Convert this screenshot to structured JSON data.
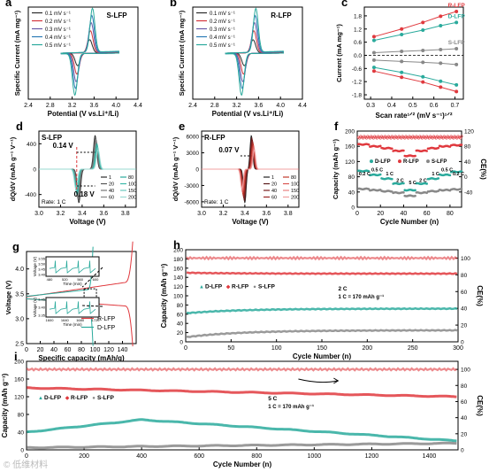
{
  "chart_data": [
    {
      "id": "a",
      "type": "line",
      "panel_label": "a",
      "title": "S-LFP",
      "xlabel": "Potential (V vs.Li⁺/Li)",
      "ylabel": "Specific Current (mA mg⁻¹)",
      "xlim": [
        2.4,
        4.4
      ],
      "ylim": [
        -1,
        1
      ],
      "xticks": [
        "2.4",
        "2.8",
        "3.2",
        "3.6",
        "4.0",
        "4.4"
      ],
      "legend": [
        "0.1 mV s⁻¹",
        "0.2 mV s⁻¹",
        "0.3 mV s⁻¹",
        "0.4 mV s⁻¹",
        "0.5 mV s⁻¹"
      ],
      "colors": [
        "#2b2b2b",
        "#d4343c",
        "#6a5aa8",
        "#2c7bb6",
        "#2aaa9c"
      ],
      "scales": [
        0.3,
        0.5,
        0.68,
        0.84,
        1.0
      ],
      "ox_peak": 3.52,
      "red_peak": 3.3,
      "legend_position": "top-left"
    },
    {
      "id": "b",
      "type": "line",
      "panel_label": "b",
      "title": "R-LFP",
      "xlabel": "Potential (V vs.Li⁺/Li)",
      "ylabel": "Specific Current (mA mg⁻¹)",
      "xlim": [
        2.4,
        4.4
      ],
      "ylim": [
        -1,
        1
      ],
      "xticks": [
        "2.4",
        "2.8",
        "3.2",
        "3.6",
        "4.0",
        "4.4"
      ],
      "legend": [
        "0.1 mV s⁻¹",
        "0.2 mV s⁻¹",
        "0.3 mV s⁻¹",
        "0.4 mV s⁻¹",
        "0.5 mV s⁻¹"
      ],
      "colors": [
        "#2b2b2b",
        "#d4343c",
        "#6a5aa8",
        "#2c7bb6",
        "#2aaa9c"
      ],
      "scales": [
        0.3,
        0.5,
        0.68,
        0.84,
        1.0
      ],
      "ox_peak": 3.5,
      "red_peak": 3.34,
      "legend_position": "top-left"
    },
    {
      "id": "c",
      "type": "scatter",
      "panel_label": "c",
      "xlabel": "Scan rate¹ᐟ² (mV s⁻¹)¹ᐟ²",
      "ylabel": "Current (mA mg⁻¹)",
      "xlim": [
        0.27,
        0.74
      ],
      "ylim": [
        -2.0,
        2.2
      ],
      "xticks": [
        "0.3",
        "0.4",
        "0.5",
        "0.6",
        "0.7"
      ],
      "yticks": [
        "-1.8",
        "-1.2",
        "-0.6",
        "0.0",
        "0.6",
        "1.2",
        "1.8"
      ],
      "x": [
        0.316,
        0.447,
        0.548,
        0.632,
        0.707
      ],
      "series": [
        {
          "name": "R-LFP",
          "color": "#e0393e",
          "values": [
            0.85,
            1.2,
            1.5,
            1.78,
            2.0
          ]
        },
        {
          "name": "D-LFP",
          "color": "#2aaa9c",
          "values": [
            0.68,
            0.95,
            1.15,
            1.35,
            1.5
          ]
        },
        {
          "name": "S-LFP",
          "color": "#888888",
          "values": [
            0.12,
            0.18,
            0.22,
            0.26,
            0.3
          ]
        },
        {
          "name": "",
          "color": "#888888",
          "values": [
            -0.22,
            -0.28,
            -0.32,
            -0.36,
            -0.42
          ]
        },
        {
          "name": "",
          "color": "#2aaa9c",
          "values": [
            -0.55,
            -0.78,
            -0.98,
            -1.18,
            -1.35
          ]
        },
        {
          "name": "",
          "color": "#e0393e",
          "values": [
            -0.72,
            -1.0,
            -1.22,
            -1.45,
            -1.65
          ]
        }
      ]
    },
    {
      "id": "d",
      "type": "line",
      "panel_label": "d",
      "title": "S-LFP",
      "xlabel": "Voltage (V)",
      "ylabel": "dQ/dV (mAh g⁻¹ V⁻¹)",
      "xlim": [
        3.0,
        3.9
      ],
      "ylim": [
        -600,
        600
      ],
      "xticks": [
        "3.0",
        "3.2",
        "3.4",
        "3.6",
        "3.8"
      ],
      "yticks": [
        "-400",
        "0",
        "400"
      ],
      "annotations": [
        "0.14 V",
        "0.18 V"
      ],
      "note": "Rate: 1 C",
      "legend": [
        "1",
        "20",
        "40",
        "60",
        "80",
        "100",
        "150",
        "200"
      ],
      "colors": [
        "#2b2b2b",
        "#555",
        "#777",
        "#888",
        "#2aaa9c",
        "#3bb8aa",
        "#6ac9bf",
        "#9ad9d2"
      ],
      "ox_peak": 3.52,
      "red_peak": 3.37
    },
    {
      "id": "e",
      "type": "line",
      "panel_label": "e",
      "title": "R-LFP",
      "xlabel": "Voltage (V)",
      "ylabel": "dQ/dV (mAh g⁻¹ V⁻¹)",
      "xlim": [
        3.0,
        3.9
      ],
      "ylim": [
        -7000,
        7000
      ],
      "xticks": [
        "3.0",
        "3.2",
        "3.4",
        "3.6",
        "3.8"
      ],
      "yticks": [
        "-6000",
        "-3000",
        "0",
        "3000",
        "6000"
      ],
      "annotations": [
        "0.07 V"
      ],
      "note": "Rate: 1 C",
      "legend": [
        "1",
        "20",
        "40",
        "60",
        "80",
        "100",
        "150",
        "200"
      ],
      "colors": [
        "#222",
        "#5a1a1a",
        "#7a2020",
        "#9a2525",
        "#c0392b",
        "#d9534f",
        "#e88080",
        "#f0a0a0"
      ],
      "ox_peak": 3.46,
      "red_peak": 3.4
    },
    {
      "id": "f",
      "type": "scatter",
      "panel_label": "f",
      "xlabel": "Cycle Number (n)",
      "ylabel": "Capacity (mAh g⁻¹)",
      "y2label": "CE(%)",
      "xlim": [
        0,
        90
      ],
      "ylim": [
        0,
        200
      ],
      "xticks": [
        "0",
        "20",
        "40",
        "60",
        "80"
      ],
      "yticks": [
        "0",
        "40",
        "80",
        "120",
        "160",
        "200"
      ],
      "y2ticks": [
        "-40",
        "0",
        "40",
        "80",
        "120"
      ],
      "legend": [
        "D-LFP",
        "R-LFP",
        "S-LFP"
      ],
      "rate_labels": [
        "0.2 C",
        "0.5 C",
        "1 C",
        "2 C",
        "5 C",
        "2 C",
        "1 C",
        "0.5 C",
        "0.2 C"
      ],
      "colors": {
        "D": "#2aaa9c",
        "R": "#e0393e",
        "S": "#888888"
      },
      "steps": {
        "R": [
          165,
          160,
          155,
          148,
          135,
          148,
          155,
          160,
          163
        ],
        "D": [
          95,
          85,
          75,
          62,
          45,
          62,
          75,
          85,
          93
        ],
        "S": [
          48,
          45,
          42,
          38,
          30,
          38,
          42,
          45,
          47
        ]
      }
    },
    {
      "id": "g",
      "type": "line",
      "panel_label": "g",
      "xlabel": "Specific capacity (mAh/g)",
      "ylabel": "Voltage (V)",
      "xlim": [
        0,
        160
      ],
      "ylim": [
        2.5,
        4.35
      ],
      "xticks": [
        "0",
        "20",
        "40",
        "60",
        "80",
        "100",
        "120",
        "140"
      ],
      "yticks": [
        "2.5",
        "3.0",
        "3.5",
        "4.0"
      ],
      "legend": [
        "R-LFP",
        "D-LFP"
      ],
      "colors": [
        "#e0393e",
        "#2aaa9c"
      ],
      "end_capacity": {
        "R-LFP": 155,
        "D-LFP": 97
      },
      "inset_top": {
        "ylabel": "Voltage (V)",
        "xlabel": "Time (min)",
        "xticks": [
          "480",
          "520",
          "560",
          "600"
        ],
        "yticks": [
          "3.40",
          "3.45",
          "3.50",
          "3.55"
        ]
      },
      "inset_bottom": {
        "ylabel": "Voltage (V)",
        "xlabel": "Time (min)",
        "xticks": [
          "1600",
          "1640",
          "1680",
          "1720"
        ],
        "yticks": [
          "3.35",
          "3.40",
          "3.45"
        ]
      }
    },
    {
      "id": "h",
      "type": "scatter",
      "panel_label": "h",
      "xlabel": "Cycle Number (n)",
      "ylabel": "Capacity (mAh g⁻¹)",
      "y2label": "CE(%)",
      "xlim": [
        0,
        300
      ],
      "ylim": [
        0,
        200
      ],
      "xticks": [
        "0",
        "50",
        "100",
        "150",
        "200",
        "250",
        "300"
      ],
      "yticks": [
        "0",
        "20",
        "40",
        "60",
        "80",
        "100",
        "120",
        "140",
        "160",
        "180",
        "200"
      ],
      "y2ticks": [
        "0",
        "20",
        "40",
        "60",
        "80",
        "100"
      ],
      "legend": [
        "D-LFP",
        "R-LFP",
        "S-LFP"
      ],
      "rate": "2 C",
      "note": "1 C = 170 mAh g⁻¹",
      "capacity": {
        "R": [
          150,
          148
        ],
        "D": [
          62,
          72
        ],
        "S": [
          10,
          25
        ]
      },
      "ce": 100,
      "colors": {
        "D": "#2aaa9c",
        "R": "#e0393e",
        "S": "#888888"
      }
    },
    {
      "id": "i",
      "type": "scatter",
      "panel_label": "i",
      "xlabel": "Cycle Number (n)",
      "ylabel": "Capacity (mAh g⁻¹)",
      "y2label": "CE(%)",
      "xlim": [
        0,
        1500
      ],
      "ylim": [
        0,
        200
      ],
      "xticks": [
        "0",
        "200",
        "400",
        "600",
        "800",
        "1000",
        "1200",
        "1400"
      ],
      "yticks": [
        "0",
        "40",
        "80",
        "120",
        "160",
        "200"
      ],
      "y2ticks": [
        "0",
        "20",
        "40",
        "60",
        "80",
        "100"
      ],
      "legend": [
        "D-LFP",
        "R-LFP",
        "S-LFP"
      ],
      "rate": "5 C",
      "note": "1 C = 170 mAh g⁻¹",
      "capacity": {
        "R": [
          [
            0,
            140
          ],
          [
            1500,
            120
          ]
        ],
        "D": [
          [
            0,
            40
          ],
          [
            400,
            68
          ],
          [
            1500,
            20
          ]
        ],
        "S": [
          [
            0,
            5
          ],
          [
            1500,
            15
          ]
        ]
      },
      "ce": 100,
      "colors": {
        "D": "#2aaa9c",
        "R": "#e0393e",
        "S": "#888888"
      }
    }
  ]
}
